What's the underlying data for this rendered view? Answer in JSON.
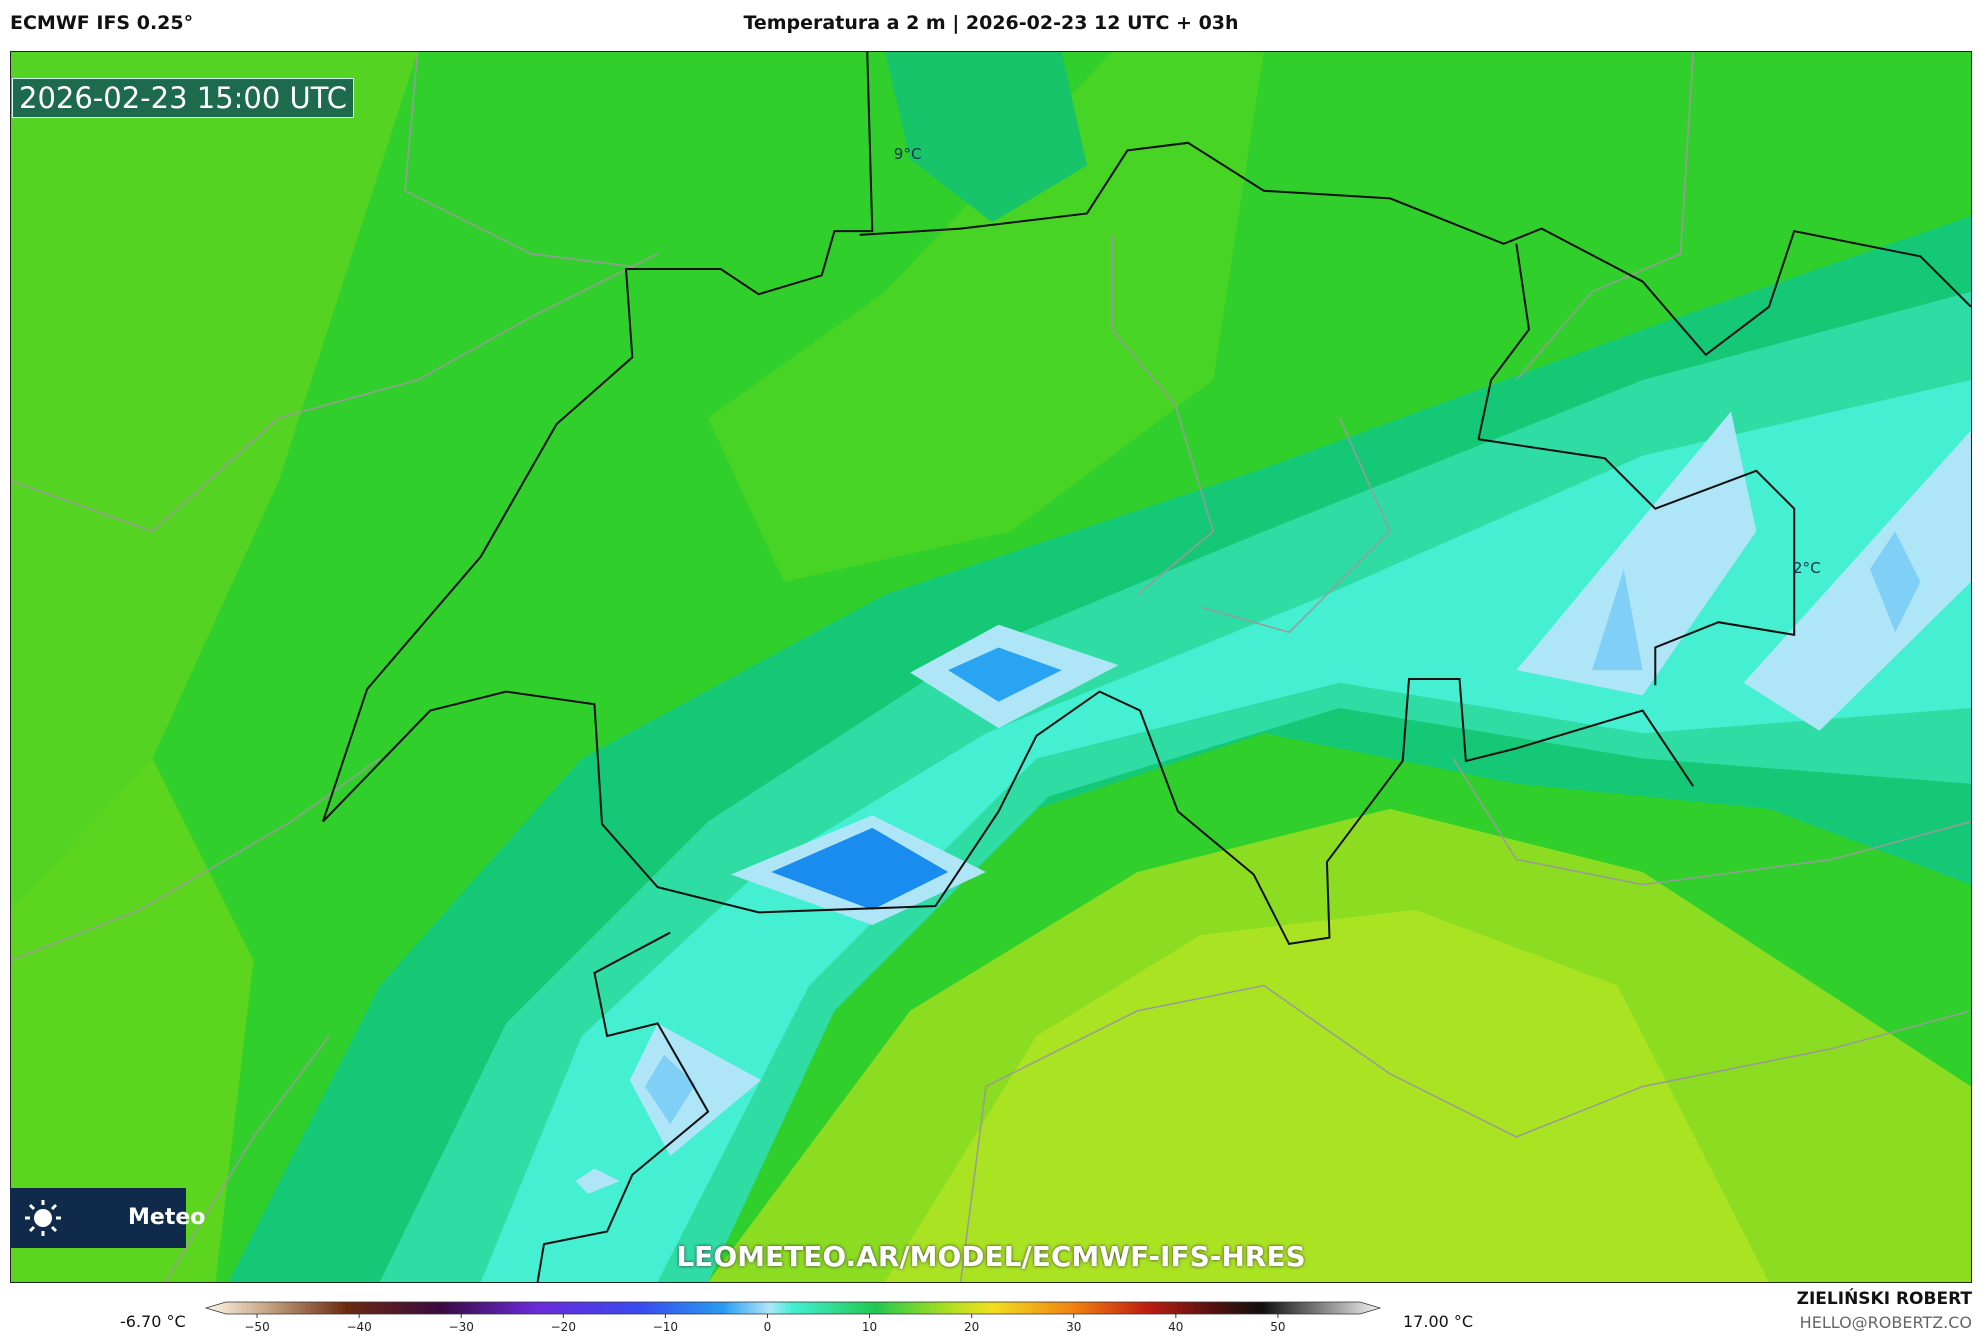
{
  "header": {
    "model": "ECMWF IFS 0.25°",
    "title": "Temperatura a 2 m | 2026-02-23 12 UTC + 03h"
  },
  "map": {
    "timestamp": "2026-02-23 15:00 UTC",
    "contour_labels": [
      "9°C",
      "2°C"
    ],
    "watermark": "LEOMETEO.AR/MODEL/ECMWF-IFS-HRES",
    "logo_text": "Meteo"
  },
  "legend": {
    "min_label": "-6.70 °C",
    "max_label": "17.00 °C",
    "lim": [
      -55,
      60
    ],
    "ticks": [
      {
        "value": -50,
        "label": "−50"
      },
      {
        "value": -40,
        "label": "−40"
      },
      {
        "value": -30,
        "label": "−30"
      },
      {
        "value": -20,
        "label": "−20"
      },
      {
        "value": -10,
        "label": "−10"
      },
      0,
      10,
      20,
      30,
      40,
      50
    ]
  },
  "footer": {
    "author": "ZIELIŃSKI ROBERT",
    "email": "HELLO@ROBERTZ.CO"
  }
}
